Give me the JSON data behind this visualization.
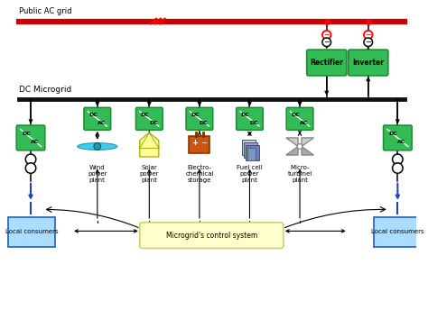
{
  "bg_color": "#ffffff",
  "ac_grid_color": "#cc0000",
  "dc_bus_color": "#111111",
  "box_green": "#33bb55",
  "box_green_edge": "#228833",
  "consumer_box_color": "#aaddff",
  "consumer_box_edge": "#3366bb",
  "control_box_color": "#ffffcc",
  "control_box_edge": "#cccc66",
  "solar_color": "#ffff99",
  "battery_color": "#cc5511",
  "wind_color": "#44ccee",
  "fuel_cell_color": "#9999bb",
  "microturbine_color": "#cccccc",
  "blue_arrow_color": "#2244bb",
  "ac_grid_text": "Public AC grid",
  "dc_microgrid_text": "DC Microgrid",
  "rectifier_text": "Rectifier",
  "inverter_text": "Inverter",
  "wind_text": "Wind\npower\nplant",
  "solar_text": "Solar\npower\nplant",
  "electrochem_text": "Electro-\nchemical\nstorage",
  "fuelcell_text": "Fuel cell\npower\nplant",
  "microturbine_text": "Micro-\nturbinel\nplant",
  "control_text": "Microgrid's control system",
  "consumer_text": "Local consumers"
}
